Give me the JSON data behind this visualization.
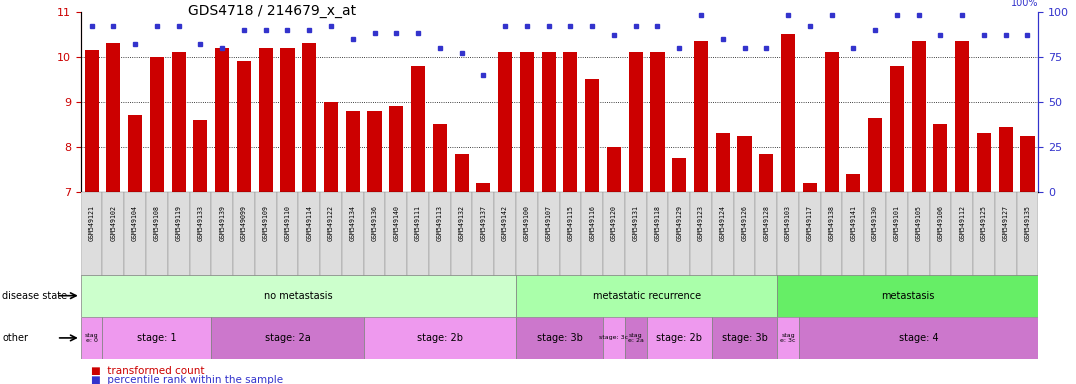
{
  "title": "GDS4718 / 214679_x_at",
  "samples": [
    "GSM549121",
    "GSM549102",
    "GSM549104",
    "GSM549108",
    "GSM549119",
    "GSM549133",
    "GSM549139",
    "GSM549099",
    "GSM549109",
    "GSM549110",
    "GSM549114",
    "GSM549122",
    "GSM549134",
    "GSM549136",
    "GSM549140",
    "GSM549111",
    "GSM549113",
    "GSM549132",
    "GSM549137",
    "GSM549142",
    "GSM549100",
    "GSM549107",
    "GSM549115",
    "GSM549116",
    "GSM549120",
    "GSM549131",
    "GSM549118",
    "GSM549129",
    "GSM549123",
    "GSM549124",
    "GSM549126",
    "GSM549128",
    "GSM549103",
    "GSM549117",
    "GSM549138",
    "GSM549141",
    "GSM549130",
    "GSM549101",
    "GSM549105",
    "GSM549106",
    "GSM549112",
    "GSM549125",
    "GSM549127",
    "GSM549135"
  ],
  "bar_values": [
    10.15,
    10.3,
    8.7,
    10.0,
    10.1,
    8.6,
    10.2,
    9.9,
    10.2,
    10.2,
    10.3,
    9.0,
    8.8,
    8.8,
    8.9,
    9.8,
    8.5,
    7.85,
    7.2,
    10.1,
    10.1,
    10.1,
    10.1,
    9.5,
    8.0,
    10.1,
    10.1,
    7.75,
    10.35,
    8.3,
    8.25,
    7.85,
    10.5,
    7.2,
    10.1,
    7.4,
    8.65,
    9.8,
    10.35,
    8.5,
    10.35,
    8.3,
    8.45,
    8.25
  ],
  "percentile_values": [
    92,
    92,
    82,
    92,
    92,
    82,
    80,
    90,
    90,
    90,
    90,
    92,
    85,
    88,
    88,
    88,
    80,
    77,
    65,
    92,
    92,
    92,
    92,
    92,
    87,
    92,
    92,
    80,
    98,
    85,
    80,
    80,
    98,
    92,
    98,
    80,
    90,
    98,
    98,
    87,
    98,
    87,
    87,
    87
  ],
  "bar_color": "#cc0000",
  "dot_color": "#3333cc",
  "ylim_left": [
    7,
    11
  ],
  "ylim_right": [
    0,
    100
  ],
  "yticks_left": [
    7,
    8,
    9,
    10,
    11
  ],
  "yticks_right": [
    0,
    25,
    50,
    75,
    100
  ],
  "disease_state_groups": [
    {
      "label": "no metastasis",
      "start": 0,
      "end": 20,
      "color": "#ccffcc"
    },
    {
      "label": "metastatic recurrence",
      "start": 20,
      "end": 32,
      "color": "#aaffaa"
    },
    {
      "label": "metastasis",
      "start": 32,
      "end": 44,
      "color": "#66ee66"
    }
  ],
  "other_groups": [
    {
      "label": "stag\ne: 0",
      "start": 0,
      "end": 1,
      "color": "#ee99ee"
    },
    {
      "label": "stage: 1",
      "start": 1,
      "end": 6,
      "color": "#ee99ee"
    },
    {
      "label": "stage: 2a",
      "start": 6,
      "end": 13,
      "color": "#cc77cc"
    },
    {
      "label": "stage: 2b",
      "start": 13,
      "end": 20,
      "color": "#ee99ee"
    },
    {
      "label": "stage: 3b",
      "start": 20,
      "end": 24,
      "color": "#cc77cc"
    },
    {
      "label": "stage: 3c",
      "start": 24,
      "end": 25,
      "color": "#ee99ee"
    },
    {
      "label": "stag\ne: 2a",
      "start": 25,
      "end": 26,
      "color": "#cc77cc"
    },
    {
      "label": "stage: 2b",
      "start": 26,
      "end": 29,
      "color": "#ee99ee"
    },
    {
      "label": "stage: 3b",
      "start": 29,
      "end": 32,
      "color": "#cc77cc"
    },
    {
      "label": "stag\ne: 3c",
      "start": 32,
      "end": 33,
      "color": "#ee99ee"
    },
    {
      "label": "stage: 4",
      "start": 33,
      "end": 44,
      "color": "#cc77cc"
    }
  ]
}
